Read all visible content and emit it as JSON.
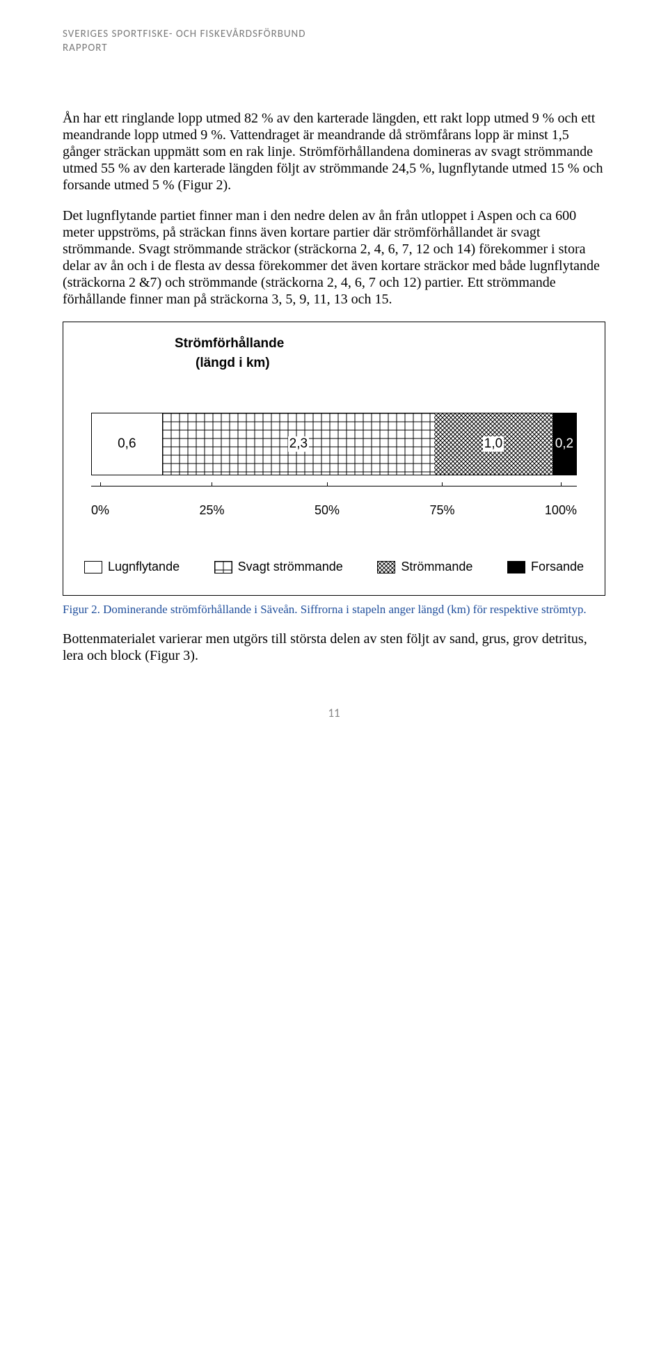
{
  "header": {
    "org": "SVERIGES SPORTFISKE- OCH FISKEVÅRDSFÖRBUND",
    "sub": "RAPPORT"
  },
  "paragraphs": {
    "p1": "Ån har ett ringlande lopp utmed 82 % av den karterade längden, ett rakt lopp utmed 9 % och ett meandrande lopp utmed 9 %. Vattendraget är meandrande då strömfårans lopp är minst 1,5 gånger sträckan uppmätt som en rak linje. Strömförhållandena domineras av svagt strömmande utmed 55 %  av den karterade längden följt av strömmande 24,5 %, lugnflytande utmed 15 % och forsande utmed 5 % (Figur 2).",
    "p2": "Det lugnflytande partiet finner man i den nedre delen av ån från utloppet i Aspen och ca 600 meter uppströms, på sträckan finns även kortare partier där strömförhållandet är svagt strömmande. Svagt strömmande sträckor (sträckorna 2, 4, 6, 7, 12 och 14) förekommer i stora delar av ån och i de flesta av dessa förekommer det även kortare sträckor med både lugnflytande (sträckorna 2 &7) och strömmande (sträckorna 2, 4, 6, 7 och 12) partier. Ett strömmande förhållande finner man på sträckorna 3, 5, 9, 11, 13 och 15.",
    "p3": "Bottenmaterialet varierar men utgörs till största delen av sten följt av sand, grus, grov detritus, lera och block (Figur 3)."
  },
  "chart": {
    "title": "Strömförhållande",
    "subtitle": "(längd i km)",
    "segments": [
      {
        "label": "0,6",
        "value": 0.6,
        "width_pct": 14.6,
        "type": "lugn"
      },
      {
        "label": "2,3",
        "value": 2.3,
        "width_pct": 56.1,
        "type": "svagt"
      },
      {
        "label": "1,0",
        "value": 1.0,
        "width_pct": 24.4,
        "type": "strom"
      },
      {
        "label": "0,2",
        "value": 0.2,
        "width_pct": 4.9,
        "type": "fors"
      }
    ],
    "axis_ticks": [
      "0%",
      "25%",
      "50%",
      "75%",
      "100%"
    ],
    "legend": [
      {
        "label": "Lugnflytande",
        "type": "lugn"
      },
      {
        "label": "Svagt strömmande",
        "type": "svagt"
      },
      {
        "label": "Strömmande",
        "type": "strom"
      },
      {
        "label": "Forsande",
        "type": "fors"
      }
    ],
    "colors": {
      "border": "#000000",
      "lugn_bg": "#ffffff",
      "fors_bg": "#000000",
      "grid_stroke": "#000000",
      "diag_stroke": "#000000"
    },
    "label_fontsize": 19
  },
  "caption": "Figur 2. Dominerande strömförhållande i Säveån. Siffrorna i stapeln anger längd (km) för respektive strömtyp.",
  "page_number": "11"
}
